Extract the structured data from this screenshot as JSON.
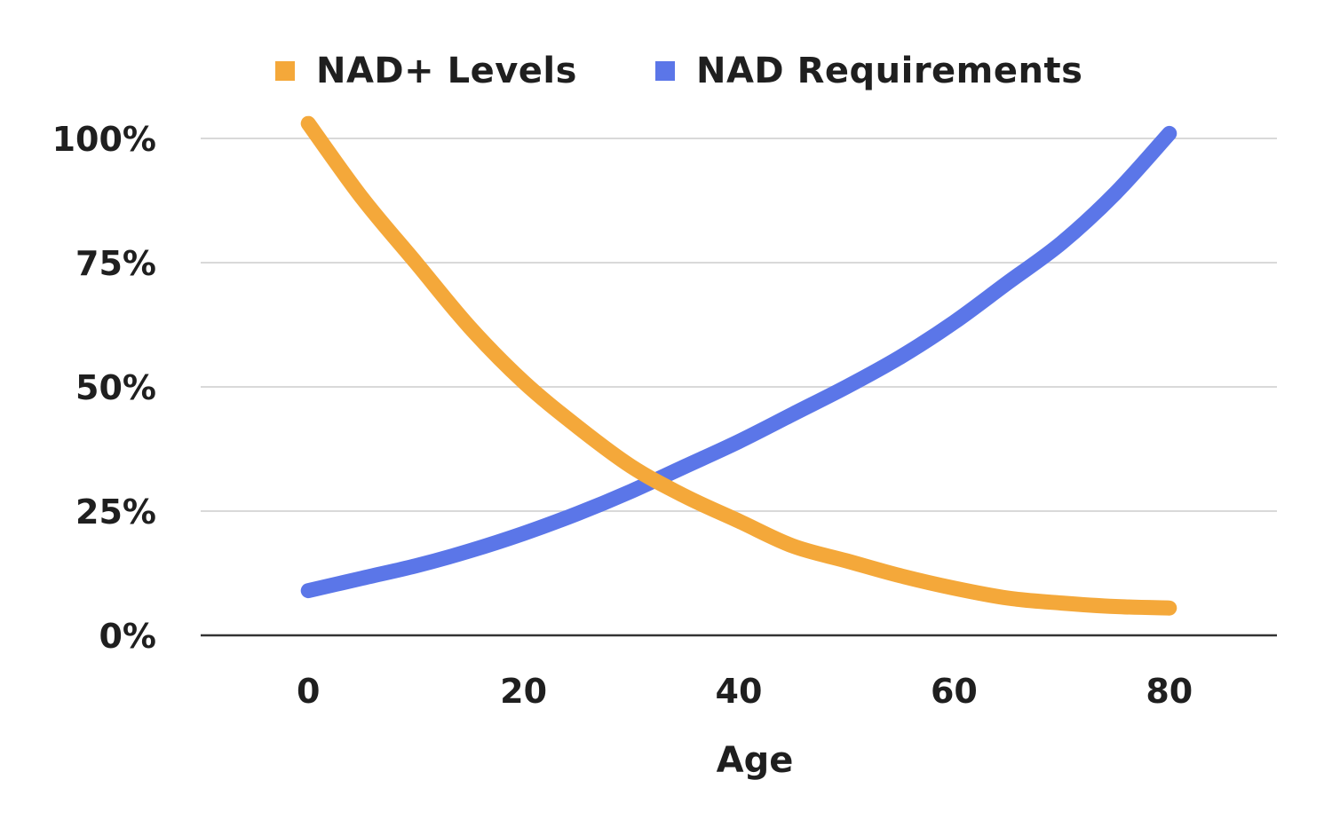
{
  "chart_data": {
    "type": "line",
    "title": "",
    "xlabel": "Age",
    "ylabel": "",
    "xlim": [
      -10,
      90
    ],
    "ylim": [
      0,
      100
    ],
    "x_ticks": [
      0,
      20,
      40,
      60,
      80
    ],
    "y_ticks": [
      0,
      25,
      50,
      75,
      100
    ],
    "x_tick_labels": [
      "0",
      "20",
      "40",
      "60",
      "80"
    ],
    "y_tick_labels": [
      "0%",
      "25%",
      "50%",
      "75%",
      "100%"
    ],
    "grid": true,
    "legend_position": "top-center",
    "series": [
      {
        "name": "NAD+ Levels",
        "color": "#F4A83A",
        "x": [
          0,
          5,
          10,
          15,
          20,
          25,
          30,
          35,
          40,
          45,
          50,
          55,
          60,
          65,
          70,
          75,
          80
        ],
        "y": [
          103,
          88,
          75,
          62,
          51,
          42,
          34,
          28,
          23,
          18,
          15,
          12,
          9.5,
          7.5,
          6.5,
          5.8,
          5.5
        ]
      },
      {
        "name": "NAD Requirements",
        "color": "#5B76E8",
        "x": [
          0,
          5,
          10,
          15,
          20,
          25,
          30,
          35,
          40,
          45,
          50,
          55,
          60,
          65,
          70,
          75,
          80
        ],
        "y": [
          9,
          11.5,
          14,
          17,
          20.5,
          24.5,
          29,
          34,
          39,
          44.5,
          50,
          56,
          63,
          71,
          79,
          89,
          101
        ]
      }
    ]
  }
}
